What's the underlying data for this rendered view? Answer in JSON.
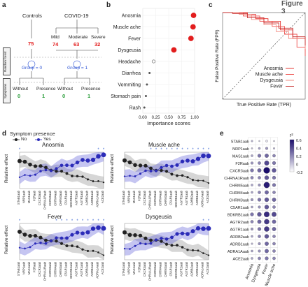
{
  "panel_a": {
    "label": "a",
    "controls": "Controls",
    "covid": "COVID-19",
    "controls_n": "75",
    "mild": "Mild",
    "moderate": "Moderate",
    "severe": "Severe",
    "mild_n": "74",
    "moderate_n": "63",
    "severe_n": "32",
    "rf_box": "Random forest",
    "group0": "Group = 0",
    "group1": "Group = 1",
    "sym_box": "Symptoms",
    "without": "Without",
    "presence": "Presence",
    "w0": "0",
    "p0": "1",
    "w1": "0",
    "p1": "1"
  },
  "panel_b": {
    "label": "b",
    "chart_data": {
      "type": "scatter",
      "categories": [
        "Anosmia",
        "Muscle ache",
        "Fever",
        "Dysgeusia",
        "Headache",
        "Diarrhea",
        "Vommiting",
        "Stomach pain",
        "Rash"
      ],
      "values": [
        0.98,
        0.97,
        0.93,
        0.6,
        0.21,
        0.13,
        0.08,
        0.06,
        0.03
      ],
      "xlabel": "Importance scores",
      "xticks": [
        "0.00",
        "0.25",
        "0.50",
        "0.75",
        "1.00"
      ],
      "xlim": [
        0,
        1
      ],
      "highlight_color": "#e21d1d"
    }
  },
  "panel_c": {
    "label": "c",
    "partial_label": "Figure 3",
    "chart_data": {
      "type": "line",
      "xlabel": "True Positive Rate (TPR)",
      "ylabel": "False Positive Rate (FPR)",
      "legend": [
        "Anosmia",
        "Muscle ache",
        "Dysgeusia",
        "Fever"
      ],
      "legend_placement": "bottom-right",
      "diagonal": "dashed"
    }
  },
  "panel_d": {
    "label": "d",
    "legend_title": "Symptom presence",
    "legend_no": "No",
    "legend_yes": "Yes",
    "ylabel": "Relative effect",
    "colors": {
      "no": "#222222",
      "yes": "#2b2bb8"
    },
    "panels": [
      {
        "title": "Anosmia",
        "xticks": [
          "STAB1aab",
          "NRP1aab",
          "MAS1aab",
          "F2Raab",
          "CXCR3aab",
          "CHRNA1Raab",
          "CHRM5aab",
          "CHRM4aab",
          "CHRM3aab",
          "C5AR1aab",
          "BDKRB1aab",
          "AGTR2aab",
          "AGTR1aab",
          "ADRB2aab",
          "ADRB1aab",
          "ADRA1Aaab",
          "ACE2aab"
        ]
      },
      {
        "title": "Muscle ache",
        "xticks": [
          "STAB1aab",
          "NRP1aab",
          "MAS1aab",
          "F2Raab",
          "CXCR3aab",
          "CHRNA1Raab",
          "CHRM5aab",
          "CHRM4aab",
          "CHRM3aab",
          "C5AR1aab",
          "BDKRB1aab",
          "AGTR2aab",
          "AGTR1aab",
          "ADRB2aab",
          "ADRB1aab",
          "ADRA1Aaab",
          "ACE2aab"
        ]
      },
      {
        "title": "Fever",
        "xticks": [
          "STAB1aab",
          "NRP1aab",
          "MAS1aab",
          "F2Raab",
          "CXCR3aab",
          "CHRNA1Raab",
          "CHRM5aab",
          "CHRM4aab",
          "CHRM3aab",
          "C5AR1aab",
          "BDKRB1aab",
          "AGTR2aab",
          "AGTR1aab",
          "ADRB2aab",
          "ADRB1aab",
          "ADRA1Aaab",
          "ACE2aab"
        ]
      },
      {
        "title": "Dysgeusia",
        "xticks": [
          "STAB1aab",
          "NRP1aab",
          "MAS1aab",
          "F2Raab",
          "CXCR3aab",
          "CHRNA1Raab",
          "CHRM5aab",
          "CHRM4aab",
          "CHRM3aab",
          "C5AR1aab",
          "BDKRB1aab",
          "AGTR2aab",
          "AGTR1aab",
          "ADRB2aab",
          "ADRB1aab",
          "ADRA1Aaab",
          "ACE2aab"
        ]
      }
    ]
  },
  "panel_e": {
    "label": "e",
    "chart_data": {
      "type": "heatmap",
      "rows": [
        "STAB1aab",
        "NRP1aab",
        "MAS1aab",
        "F2Raab",
        "CXCR3aab",
        "CHRNA1Raab",
        "CHRM5aab",
        "CHRM4aab",
        "CHRM3aab",
        "C5AR1aab",
        "BDKRB1aab",
        "AGTR2aab",
        "AGTR1aab",
        "ADRB2aab",
        "ADRB1aab",
        "ADRA1Aaab",
        "ACE2aab"
      ],
      "columns": [
        "Anosmia",
        "Dysgeusia",
        "Fever",
        "Muscle ache"
      ],
      "values": [
        [
          0.05,
          0.0,
          -0.1,
          0.0
        ],
        [
          0.02,
          0.1,
          0.15,
          0.05
        ],
        [
          0.1,
          0.25,
          0.3,
          0.2
        ],
        [
          0.15,
          0.2,
          0.4,
          0.25
        ],
        [
          0.25,
          0.3,
          0.6,
          0.35
        ],
        [
          0.2,
          0.2,
          0.35,
          0.25
        ],
        [
          0.1,
          0.15,
          0.55,
          0.25
        ],
        [
          0.1,
          0.2,
          0.3,
          0.2
        ],
        [
          0.15,
          0.25,
          0.35,
          0.3
        ],
        [
          0.1,
          0.15,
          0.35,
          0.2
        ],
        [
          0.25,
          0.35,
          0.5,
          0.4
        ],
        [
          0.2,
          0.3,
          0.45,
          0.3
        ],
        [
          0.15,
          0.25,
          0.45,
          0.3
        ],
        [
          0.1,
          0.2,
          0.35,
          0.2
        ],
        [
          0.05,
          0.15,
          0.3,
          0.2
        ],
        [
          0.1,
          0.15,
          0.3,
          0.2
        ],
        [
          0.1,
          0.2,
          0.25,
          0.2
        ]
      ],
      "legend_title": "r²",
      "legend_ticks": [
        "0.6",
        "0.4",
        "0.2",
        "0",
        "-0.2"
      ],
      "colors": {
        "high": "#1a0d6b",
        "low": "#ffffff"
      }
    }
  }
}
